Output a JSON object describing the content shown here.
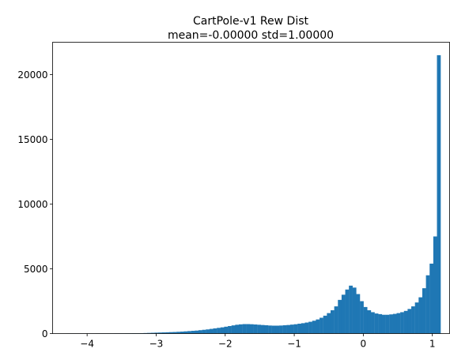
{
  "chart_data": {
    "type": "histogram",
    "title_line1": "CartPole-v1 Rew Dist",
    "title_line2": "mean=-0.00000 std=1.00000",
    "xlabel": "",
    "ylabel": "",
    "xlim": [
      -4.5,
      1.25
    ],
    "ylim": [
      0,
      22500
    ],
    "xticks": [
      -4,
      -3,
      -2,
      -1,
      0,
      1
    ],
    "xtick_labels": [
      "−4",
      "−3",
      "−2",
      "−1",
      "0",
      "1"
    ],
    "yticks": [
      0,
      5000,
      10000,
      15000,
      20000
    ],
    "ytick_labels": [
      "0",
      "5000",
      "10000",
      "15000",
      "20000"
    ],
    "grid": false,
    "bar_color": "#1f77b4",
    "bin_range": [
      -4.3,
      1.12
    ],
    "counts": [
      5,
      5,
      5,
      5,
      5,
      5,
      5,
      5,
      10,
      10,
      10,
      10,
      10,
      15,
      15,
      15,
      20,
      20,
      25,
      25,
      30,
      40,
      50,
      60,
      70,
      80,
      90,
      100,
      110,
      120,
      135,
      150,
      170,
      190,
      210,
      230,
      260,
      290,
      320,
      360,
      400,
      440,
      480,
      530,
      580,
      630,
      680,
      710,
      730,
      730,
      720,
      700,
      680,
      660,
      640,
      620,
      610,
      610,
      620,
      640,
      660,
      690,
      720,
      760,
      800,
      850,
      910,
      990,
      1090,
      1220,
      1380,
      1580,
      1800,
      2100,
      2600,
      3000,
      3400,
      3700,
      3550,
      3050,
      2500,
      2050,
      1800,
      1650,
      1550,
      1500,
      1450,
      1450,
      1480,
      1520,
      1580,
      1650,
      1750,
      1900,
      2100,
      2400,
      2800,
      3500,
      4500,
      5400,
      7500,
      21500
    ]
  }
}
